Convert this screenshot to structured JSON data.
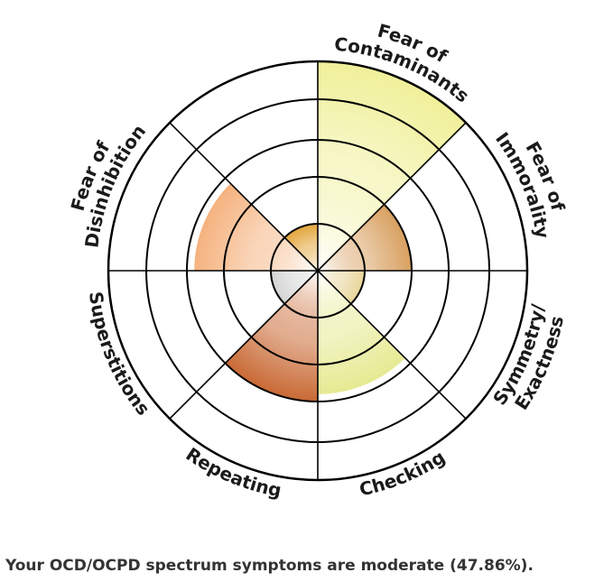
{
  "chart_data": {
    "type": "polar_area",
    "title": "",
    "rings": 5,
    "max": 5,
    "categories": [
      {
        "label_lines": [
          "Fear of",
          "Contaminants"
        ],
        "value": 5.0,
        "color": "#f0f09a"
      },
      {
        "label_lines": [
          "Fear of",
          "Immorality"
        ],
        "value": 2.0,
        "color": "#d8a060"
      },
      {
        "label_lines": [
          "Symmetry/",
          "Exactness"
        ],
        "value": 1.0,
        "color": "#e8d59a"
      },
      {
        "label_lines": [
          "Checking"
        ],
        "value": 2.8,
        "color": "#e6ea92"
      },
      {
        "label_lines": [
          "Repeating"
        ],
        "value": 3.0,
        "color": "#c96a35"
      },
      {
        "label_lines": [
          "Superstitions"
        ],
        "value": 1.0,
        "color": "#d4d4d4"
      },
      {
        "label_lines": [
          "Fear of",
          "Disinhibition"
        ],
        "value": 2.8,
        "color": "#f5b27e"
      },
      {
        "label_lines": [],
        "value": 1.0,
        "color": "#e3a63d"
      }
    ]
  },
  "summary_text": "Your OCD/OCPD spectrum symptoms are moderate (47.86%)."
}
